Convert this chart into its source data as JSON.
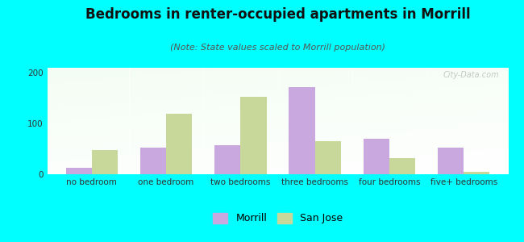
{
  "title": "Bedrooms in renter-occupied apartments in Morrill",
  "subtitle": "(Note: State values scaled to Morrill population)",
  "categories": [
    "no bedroom",
    "one bedroom",
    "two bedrooms",
    "three bedrooms",
    "four bedrooms",
    "five+ bedrooms"
  ],
  "morrill_values": [
    13,
    52,
    57,
    172,
    70,
    53
  ],
  "sanjose_values": [
    47,
    120,
    153,
    65,
    32,
    5
  ],
  "morrill_color": "#c9a8e0",
  "sanjose_color": "#c8d89a",
  "background_color": "#00ffff",
  "ylim": [
    0,
    210
  ],
  "yticks": [
    0,
    100,
    200
  ],
  "bar_width": 0.35,
  "legend_labels": [
    "Morrill",
    "San Jose"
  ],
  "watermark": "City-Data.com",
  "title_fontsize": 12,
  "subtitle_fontsize": 8,
  "tick_fontsize": 7.5,
  "legend_fontsize": 9
}
